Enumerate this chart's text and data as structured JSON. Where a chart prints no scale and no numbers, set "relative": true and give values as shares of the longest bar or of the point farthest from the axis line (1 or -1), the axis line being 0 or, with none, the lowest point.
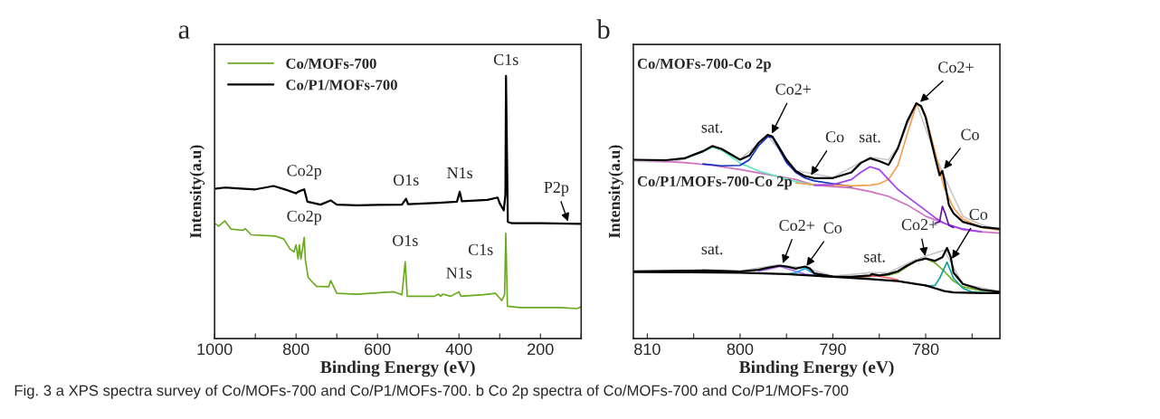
{
  "chart_data": [
    {
      "type": "line",
      "title": "a",
      "xlabel": "Binding Energy (eV)",
      "ylabel": "Intensity(a.u)",
      "relative": true,
      "tick_labels": "x",
      "grid": false,
      "legend": "top left",
      "xlim": [
        1000,
        100
      ],
      "xticks": [
        1000,
        {
          "value": 900,
          "label": null
        },
        800,
        {
          "value": 700,
          "label": null
        },
        600,
        {
          "value": 500,
          "label": null
        },
        400,
        {
          "value": 300,
          "label": null
        },
        200,
        {
          "value": 100,
          "label": null
        }
      ],
      "series": [
        {
          "name": "Co/MOFs-700",
          "color": "#6aaa1e",
          "x": [
            1000,
            990,
            975,
            960,
            930,
            925,
            910,
            850,
            830,
            815,
            805,
            800,
            795,
            792,
            788,
            780,
            777,
            770,
            750,
            720,
            715,
            700,
            650,
            560,
            540,
            532,
            527,
            460,
            450,
            445,
            440,
            420,
            400,
            395,
            340,
            310,
            295,
            288,
            285,
            281,
            250,
            150,
            110,
            100
          ],
          "values": [
            0.439,
            0.428,
            0.448,
            0.417,
            0.412,
            0.419,
            0.395,
            0.39,
            0.379,
            0.341,
            0.33,
            0.357,
            0.303,
            0.357,
            0.303,
            0.385,
            0.297,
            0.232,
            0.199,
            0.197,
            0.221,
            0.172,
            0.169,
            0.178,
            0.167,
            0.292,
            0.161,
            0.161,
            0.169,
            0.161,
            0.169,
            0.161,
            0.178,
            0.161,
            0.167,
            0.172,
            0.145,
            0.167,
            0.401,
            0.123,
            0.118,
            0.118,
            0.114,
            0.121
          ]
        },
        {
          "name": "Co/P1/MOFs-700",
          "color": "#000000",
          "x": [
            1000,
            975,
            900,
            855,
            820,
            800,
            795,
            780,
            772,
            740,
            715,
            700,
            650,
            600,
            540,
            530,
            525,
            450,
            405,
            398,
            393,
            330,
            305,
            300,
            290,
            286,
            284.5,
            280,
            270,
            200,
            100
          ],
          "values": [
            0.57,
            0.575,
            0.568,
            0.581,
            0.564,
            0.553,
            0.559,
            0.568,
            0.521,
            0.51,
            0.526,
            0.51,
            0.507,
            0.509,
            0.51,
            0.532,
            0.512,
            0.517,
            0.521,
            0.559,
            0.523,
            0.528,
            0.537,
            0.515,
            0.488,
            0.548,
            1.0,
            0.444,
            0.439,
            0.439,
            0.437
          ]
        }
      ],
      "annotations": [
        {
          "text": "C1s",
          "x": 284.5,
          "y": 1.0
        },
        {
          "text": "Co2p",
          "x": 780,
          "y": 0.568
        },
        {
          "text": "O1s",
          "x": 530,
          "y": 0.532
        },
        {
          "text": "N1s",
          "x": 398,
          "y": 0.559
        },
        {
          "text": "P2p",
          "x": 130,
          "y": 0.437
        },
        {
          "text": "Co2p",
          "x": 780,
          "y": 0.385
        },
        {
          "text": "O1s",
          "x": 532,
          "y": 0.292
        },
        {
          "text": "N1s",
          "x": 400,
          "y": 0.178
        },
        {
          "text": "C1s",
          "x": 285,
          "y": 0.401
        },
        "Fig. 3 a XPS spectra survey of Co/MOFs-700 and Co/P1/MOFs-700. b Co 2p spectra of Co/MOFs-700 and Co/P1/MOFs-700"
      ]
    },
    {
      "type": "line",
      "title": "b",
      "xlabel": "Binding Energy (eV)",
      "ylabel": "Intensity(a.u)",
      "relative": true,
      "tick_labels": "x",
      "grid": false,
      "xlim": [
        811.5,
        772
      ],
      "xticks": [
        810,
        {
          "value": 805,
          "label": null
        },
        800,
        {
          "value": 795,
          "label": null
        },
        790,
        {
          "value": 785,
          "label": null
        },
        780,
        {
          "value": 775,
          "label": null
        }
      ],
      "series": [
        {
          "color": "#c8c8c8",
          "x": [
            811.5,
            808,
            806,
            803,
            800,
            797,
            794,
            790,
            786,
            784,
            783,
            781,
            779,
            778,
            776,
            774,
            772
          ],
          "values": [
            0.754,
            0.75,
            0.762,
            0.818,
            0.762,
            0.862,
            0.714,
            0.685,
            0.77,
            0.76,
            0.814,
            1.0,
            0.784,
            0.688,
            0.52,
            0.484,
            0.462
          ]
        },
        {
          "color": "#d070c0",
          "x": [
            811.5,
            806,
            803,
            800,
            797,
            794,
            792,
            790,
            788,
            786,
            784,
            782,
            780,
            778,
            776,
            774,
            772
          ],
          "values": [
            0.76,
            0.748,
            0.736,
            0.718,
            0.697,
            0.676,
            0.652,
            0.646,
            0.64,
            0.625,
            0.604,
            0.568,
            0.52,
            0.49,
            0.462,
            0.454,
            0.448
          ]
        },
        {
          "color": "#60e8c0",
          "x": [
            806,
            804,
            803,
            802,
            800,
            798,
            796,
            794,
            792
          ],
          "values": [
            0.764,
            0.794,
            0.813,
            0.801,
            0.746,
            0.712,
            0.69,
            0.667,
            0.652
          ]
        },
        {
          "color": "#1030c0",
          "x": [
            804,
            802,
            800,
            799,
            798,
            797,
            796.5,
            796,
            795,
            794,
            793,
            792,
            790,
            788
          ],
          "values": [
            0.742,
            0.734,
            0.736,
            0.76,
            0.82,
            0.858,
            0.854,
            0.82,
            0.748,
            0.706,
            0.682,
            0.67,
            0.658,
            0.646
          ]
        },
        {
          "color": "#f4a050",
          "x": [
            794,
            792,
            790,
            788,
            786,
            785,
            784,
            783,
            782,
            781,
            780.5,
            780,
            779,
            778,
            777,
            776,
            774,
            772
          ],
          "values": [
            0.661,
            0.654,
            0.652,
            0.649,
            0.652,
            0.658,
            0.676,
            0.736,
            0.868,
            0.994,
            0.988,
            0.946,
            0.796,
            0.64,
            0.556,
            0.508,
            0.472,
            0.46
          ]
        },
        {
          "color": "#a040f0",
          "x": [
            792,
            790,
            788,
            787,
            786,
            785,
            784,
            783,
            782,
            781,
            780,
            779,
            778,
            776,
            774
          ],
          "values": [
            0.652,
            0.654,
            0.676,
            0.706,
            0.73,
            0.718,
            0.676,
            0.634,
            0.604,
            0.574,
            0.544,
            0.514,
            0.49,
            0.466,
            0.454
          ]
        },
        {
          "color": "#6010a0",
          "x": [
            779,
            778.5,
            778.2,
            777.9,
            777.5,
            777
          ],
          "values": [
            0.49,
            0.496,
            0.562,
            0.532,
            0.481,
            0.472
          ]
        },
        {
          "color": "#000000",
          "x": [
            811.5,
            808,
            806,
            804,
            803,
            802,
            800,
            799,
            798,
            797,
            796.5,
            796,
            795,
            794,
            793,
            792,
            790,
            788,
            787,
            786,
            785,
            784,
            783,
            782,
            781,
            780.5,
            780,
            779,
            778.5,
            778.2,
            778,
            777.5,
            777,
            776,
            774,
            772
          ],
          "values": [
            0.76,
            0.758,
            0.766,
            0.796,
            0.818,
            0.806,
            0.76,
            0.778,
            0.832,
            0.866,
            0.858,
            0.826,
            0.76,
            0.712,
            0.69,
            0.682,
            0.682,
            0.706,
            0.746,
            0.766,
            0.754,
            0.738,
            0.808,
            0.922,
            1.0,
            0.988,
            0.94,
            0.772,
            0.694,
            0.712,
            0.676,
            0.568,
            0.532,
            0.496,
            0.474,
            0.466
          ]
        },
        {
          "color": "#c8c8c8",
          "x": [
            804,
            800,
            796,
            793,
            790,
            786,
            784,
            781,
            778,
            776,
            772
          ],
          "values": [
            0.292,
            0.288,
            0.313,
            0.301,
            0.265,
            0.28,
            0.28,
            0.337,
            0.376,
            0.232,
            0.2
          ]
        },
        {
          "color": "#b070f0",
          "x": [
            798,
            797,
            795.7,
            794.5,
            793,
            791
          ],
          "values": [
            0.286,
            0.294,
            0.306,
            0.292,
            0.274,
            0.263
          ]
        },
        {
          "color": "#20a8f0",
          "x": [
            795,
            794,
            793,
            792.5,
            791.5,
            790
          ],
          "values": [
            0.274,
            0.28,
            0.298,
            0.286,
            0.265,
            0.262
          ]
        },
        {
          "color": "#70b020",
          "x": [
            788,
            786,
            784,
            783,
            782,
            781,
            780,
            779,
            778,
            777,
            776,
            774,
            772
          ],
          "values": [
            0.258,
            0.264,
            0.27,
            0.28,
            0.306,
            0.33,
            0.34,
            0.322,
            0.286,
            0.244,
            0.22,
            0.204,
            0.199
          ]
        },
        {
          "color": "#10a0a0",
          "x": [
            780,
            779,
            778.5,
            777.7,
            777,
            776,
            775,
            773
          ],
          "values": [
            0.222,
            0.226,
            0.256,
            0.325,
            0.256,
            0.214,
            0.198,
            0.193
          ]
        },
        {
          "color": "#f06060",
          "x": [
            788,
            786,
            785.5,
            784,
            783
          ],
          "values": [
            0.258,
            0.265,
            0.267,
            0.258,
            0.249
          ]
        },
        {
          "color": "#000000",
          "x": [
            811.5,
            805,
            800,
            795,
            790,
            786,
            783,
            781,
            780,
            779,
            778,
            777,
            774,
            772
          ],
          "values": [
            0.283,
            0.282,
            0.28,
            0.274,
            0.262,
            0.253,
            0.244,
            0.232,
            0.226,
            0.214,
            0.202,
            0.196,
            0.193,
            0.193
          ]
        },
        {
          "color": "#000000",
          "x": [
            811.5,
            806,
            804,
            802,
            800,
            798,
            797,
            795.7,
            795,
            794,
            793,
            792.5,
            792,
            790,
            788,
            786,
            785.8,
            785,
            784,
            783,
            782,
            781,
            780,
            779,
            778.2,
            777.7,
            777.3,
            777,
            776,
            774,
            772
          ],
          "values": [
            0.286,
            0.288,
            0.289,
            0.287,
            0.285,
            0.292,
            0.301,
            0.31,
            0.306,
            0.297,
            0.306,
            0.298,
            0.277,
            0.263,
            0.262,
            0.268,
            0.274,
            0.268,
            0.274,
            0.286,
            0.31,
            0.33,
            0.34,
            0.33,
            0.346,
            0.385,
            0.346,
            0.28,
            0.232,
            0.208,
            0.198
          ]
        }
      ],
      "annotations": [
        "Co/MOFs-700-Co 2p",
        "Co/P1/MOFs-700-Co 2p",
        {
          "text": "sat.",
          "x": 803,
          "y": 0.818
        },
        {
          "text": "Co2+",
          "x": 796.7,
          "y": 0.862
        },
        {
          "text": "Co",
          "x": 792.5,
          "y": 0.686
        },
        {
          "text": "sat.",
          "x": 786,
          "y": 0.766
        },
        {
          "text": "Co2+",
          "x": 780.8,
          "y": 0.998
        },
        {
          "text": "Co",
          "x": 778.2,
          "y": 0.712
        },
        {
          "text": "sat.",
          "x": 803,
          "y": 0.29
        },
        {
          "text": "Co2+",
          "x": 795.5,
          "y": 0.31
        },
        {
          "text": "Co",
          "x": 793,
          "y": 0.3
        },
        {
          "text": "sat.",
          "x": 785.5,
          "y": 0.268
        },
        {
          "text": "Co2+",
          "x": 780,
          "y": 0.34
        },
        {
          "text": "Co",
          "x": 777.3,
          "y": 0.33
        }
      ]
    }
  ]
}
